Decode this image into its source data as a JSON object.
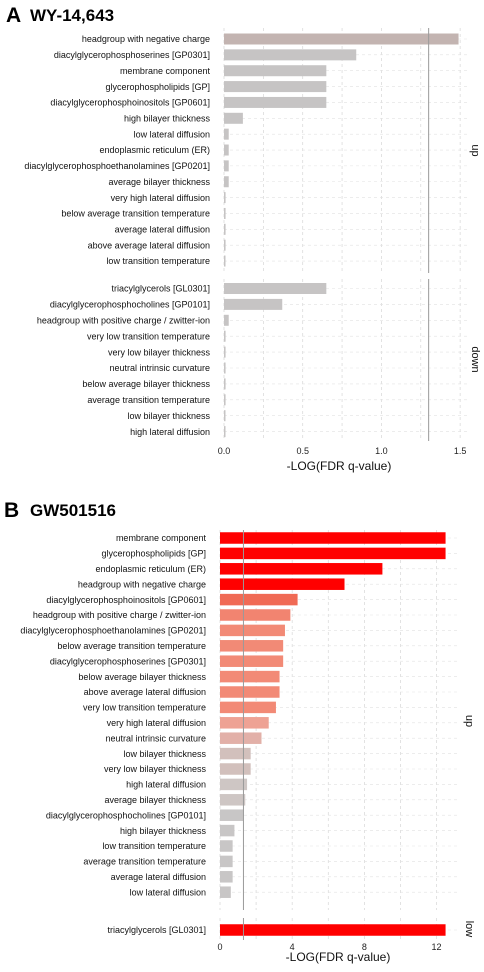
{
  "chart_data": [
    {
      "panel_letter": "A",
      "title": "WY-14,643",
      "type": "bar",
      "orientation": "horizontal",
      "xlabel": "-LOG(FDR q-value)",
      "xlim": [
        0,
        1.55
      ],
      "xticks": [
        "0.0",
        "0.5",
        "1.0",
        "1.5"
      ],
      "xtick_values": [
        0,
        0.5,
        1.0,
        1.5
      ],
      "reference_line": 1.3,
      "grid": true,
      "facets": [
        {
          "label": "up",
          "categories": [
            "headgroup with negative charge",
            "diacylglycerophosphoserines [GP0301]",
            "membrane component",
            "glycerophospholipids [GP]",
            "diacylglycerophosphoinositols [GP0601]",
            "high bilayer thickness",
            "low lateral diffusion",
            "endoplasmic reticulum (ER)",
            "diacylglycerophosphoethanolamines [GP0201]",
            "average bilayer thickness",
            "very high lateral diffusion",
            "below average transition temperature",
            "average lateral diffusion",
            "above average lateral diffusion",
            "low transition temperature"
          ],
          "values": [
            1.49,
            0.84,
            0.65,
            0.65,
            0.65,
            0.12,
            0.03,
            0.03,
            0.03,
            0.03,
            0.01,
            0.01,
            0.01,
            0.01,
            0.005
          ],
          "colors": [
            "#c3b4b1",
            "#c6c4c4",
            "#c6c4c4",
            "#c6c4c4",
            "#c6c4c4",
            "#c6c4c4",
            "#c6c4c4",
            "#c6c4c4",
            "#c6c4c4",
            "#c6c4c4",
            "#c6c4c4",
            "#c6c4c4",
            "#c6c4c4",
            "#c6c4c4",
            "#c6c4c4"
          ]
        },
        {
          "label": "down",
          "categories": [
            "triacylglycerols [GL0301]",
            "diacylglycerophosphocholines [GP0101]",
            "headgroup with positive charge / zwitter-ion",
            "very low transition temperature",
            "very low bilayer thickness",
            "neutral intrinsic curvature",
            "below average bilayer thickness",
            "average transition temperature",
            "low bilayer thickness",
            "high lateral diffusion"
          ],
          "values": [
            0.65,
            0.37,
            0.03,
            0.01,
            0.01,
            0.01,
            0.01,
            0.01,
            0.005,
            0.005
          ],
          "colors": [
            "#c6c4c4",
            "#c6c4c4",
            "#c6c4c4",
            "#c6c4c4",
            "#c6c4c4",
            "#c6c4c4",
            "#c6c4c4",
            "#c6c4c4",
            "#c6c4c4",
            "#c6c4c4"
          ]
        }
      ]
    },
    {
      "panel_letter": "B",
      "title": "GW501516",
      "type": "bar",
      "orientation": "horizontal",
      "xlabel": "-LOG(FDR q-value)",
      "xlim": [
        0,
        13.3
      ],
      "xticks": [
        "0",
        "4",
        "8",
        "12"
      ],
      "xtick_values": [
        0,
        4,
        8,
        12
      ],
      "reference_line": 1.3,
      "grid": true,
      "facets": [
        {
          "label": "up",
          "categories": [
            "membrane component",
            "glycerophospholipids [GP]",
            "endoplasmic reticulum (ER)",
            "headgroup with negative charge",
            "diacylglycerophosphoinositols [GP0601]",
            "headgroup with positive charge / zwitter-ion",
            "diacylglycerophosphoethanolamines [GP0201]",
            "below average transition temperature",
            "diacylglycerophosphoserines [GP0301]",
            "below average bilayer thickness",
            "above average lateral diffusion",
            "very low transition temperature",
            "very high lateral diffusion",
            "neutral intrinsic curvature",
            "low bilayer thickness",
            "very low bilayer thickness",
            "high lateral diffusion",
            "average bilayer thickness",
            "diacylglycerophosphocholines [GP0101]",
            "high bilayer thickness",
            "low transition temperature",
            "average transition temperature",
            "average lateral diffusion",
            "low lateral diffusion"
          ],
          "values": [
            12.5,
            12.5,
            9.0,
            6.9,
            4.3,
            3.9,
            3.6,
            3.5,
            3.5,
            3.3,
            3.3,
            3.1,
            2.7,
            2.3,
            1.7,
            1.7,
            1.5,
            1.4,
            1.3,
            0.8,
            0.7,
            0.7,
            0.7,
            0.6
          ],
          "colors": [
            "#ff0000",
            "#ff0000",
            "#ff0000",
            "#ff0000",
            "#f06a55",
            "#f28470",
            "#f28a76",
            "#f28a76",
            "#f28a76",
            "#f28a76",
            "#f28a76",
            "#f28a76",
            "#eea294",
            "#e2b0a8",
            "#d2c0bc",
            "#d2c0bc",
            "#cec6c4",
            "#cec6c4",
            "#c8c6c6",
            "#c8c6c6",
            "#c8c6c6",
            "#c8c6c6",
            "#c8c6c6",
            "#c8c6c6"
          ]
        },
        {
          "label": "low",
          "categories": [
            "triacylglycerols [GL0301]"
          ],
          "values": [
            12.5
          ],
          "colors": [
            "#ff0000"
          ]
        }
      ]
    }
  ]
}
